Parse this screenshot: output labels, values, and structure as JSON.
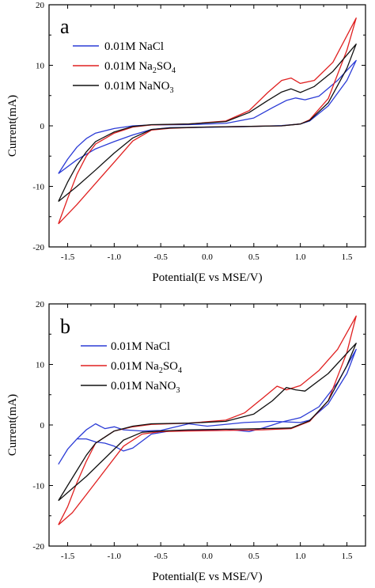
{
  "chart_data": [
    {
      "type": "line",
      "panel_label": "a",
      "xlabel": "Potential(E vs MSE/V)",
      "ylabel": "Current(mA)",
      "xlim": [
        -1.7,
        1.7
      ],
      "ylim": [
        -20,
        20
      ],
      "x_ticks": [
        -1.5,
        -1.0,
        -0.5,
        0.0,
        0.5,
        1.0,
        1.5
      ],
      "x_tick_labels": [
        "-1.5",
        "-1.0",
        "-0.5",
        "0.0",
        "0.5",
        "1.0",
        "1.5"
      ],
      "y_ticks": [
        -20,
        -10,
        0,
        10,
        20
      ],
      "y_tick_labels": [
        "-20",
        "-10",
        "0",
        "10",
        "20"
      ],
      "legend_position": "top-left",
      "series": [
        {
          "name": "0.01M NaCl",
          "legend": {
            "main": "0.01M NaCl",
            "sub": "",
            "tail": ""
          },
          "color": "#2b3bd6",
          "points": [
            [
              -1.6,
              -7.9
            ],
            [
              -1.5,
              -5.5
            ],
            [
              -1.4,
              -3.5
            ],
            [
              -1.3,
              -2.1
            ],
            [
              -1.2,
              -1.2
            ],
            [
              -1.0,
              -0.45
            ],
            [
              -0.8,
              0.0
            ],
            [
              -0.6,
              0.15
            ],
            [
              -0.2,
              0.2
            ],
            [
              0.2,
              0.4
            ],
            [
              0.5,
              1.3
            ],
            [
              0.7,
              3.0
            ],
            [
              0.85,
              4.2
            ],
            [
              0.95,
              4.6
            ],
            [
              1.05,
              4.3
            ],
            [
              1.2,
              4.9
            ],
            [
              1.4,
              7.5
            ],
            [
              1.6,
              10.8
            ],
            [
              1.5,
              7.5
            ],
            [
              1.3,
              3.3
            ],
            [
              1.1,
              0.8
            ],
            [
              1.0,
              0.3
            ],
            [
              0.8,
              0.05
            ],
            [
              0.4,
              -0.15
            ],
            [
              0.0,
              -0.25
            ],
            [
              -0.4,
              -0.3
            ],
            [
              -0.6,
              -0.6
            ],
            [
              -0.8,
              -1.5
            ],
            [
              -1.0,
              -2.6
            ],
            [
              -1.2,
              -3.8
            ],
            [
              -1.4,
              -5.6
            ],
            [
              -1.6,
              -7.9
            ]
          ]
        },
        {
          "name": "0.01M Na2SO4",
          "legend": {
            "main": "0.01M Na",
            "sub": "2",
            "tail": "SO",
            "sub2": "4"
          },
          "color": "#e02020",
          "points": [
            [
              -1.6,
              -16.2
            ],
            [
              -1.5,
              -12.0
            ],
            [
              -1.4,
              -8.0
            ],
            [
              -1.3,
              -5.0
            ],
            [
              -1.2,
              -3.0
            ],
            [
              -1.0,
              -1.2
            ],
            [
              -0.8,
              -0.2
            ],
            [
              -0.6,
              0.15
            ],
            [
              -0.2,
              0.3
            ],
            [
              0.2,
              0.8
            ],
            [
              0.45,
              2.5
            ],
            [
              0.65,
              5.5
            ],
            [
              0.8,
              7.5
            ],
            [
              0.9,
              7.9
            ],
            [
              1.0,
              7.0
            ],
            [
              1.15,
              7.5
            ],
            [
              1.35,
              10.5
            ],
            [
              1.6,
              17.8
            ],
            [
              1.5,
              12.5
            ],
            [
              1.3,
              4.5
            ],
            [
              1.1,
              1.0
            ],
            [
              1.0,
              0.3
            ],
            [
              0.8,
              0.0
            ],
            [
              0.4,
              -0.1
            ],
            [
              0.0,
              -0.2
            ],
            [
              -0.4,
              -0.4
            ],
            [
              -0.6,
              -0.7
            ],
            [
              -0.8,
              -2.5
            ],
            [
              -1.0,
              -6.0
            ],
            [
              -1.2,
              -9.5
            ],
            [
              -1.4,
              -13.0
            ],
            [
              -1.6,
              -16.2
            ]
          ]
        },
        {
          "name": "0.01M NaNO3",
          "legend": {
            "main": "0.01M NaNO",
            "sub": "3",
            "tail": ""
          },
          "color": "#111111",
          "points": [
            [
              -1.6,
              -12.5
            ],
            [
              -1.5,
              -9.3
            ],
            [
              -1.4,
              -6.5
            ],
            [
              -1.3,
              -4.3
            ],
            [
              -1.2,
              -2.6
            ],
            [
              -1.0,
              -1.0
            ],
            [
              -0.8,
              -0.1
            ],
            [
              -0.6,
              0.2
            ],
            [
              -0.2,
              0.3
            ],
            [
              0.2,
              0.7
            ],
            [
              0.45,
              2.2
            ],
            [
              0.65,
              4.2
            ],
            [
              0.8,
              5.6
            ],
            [
              0.9,
              6.1
            ],
            [
              1.0,
              5.5
            ],
            [
              1.15,
              6.5
            ],
            [
              1.35,
              9.0
            ],
            [
              1.6,
              13.5
            ],
            [
              1.5,
              9.5
            ],
            [
              1.3,
              3.8
            ],
            [
              1.1,
              0.9
            ],
            [
              1.0,
              0.3
            ],
            [
              0.8,
              0.0
            ],
            [
              0.4,
              -0.1
            ],
            [
              0.0,
              -0.2
            ],
            [
              -0.4,
              -0.35
            ],
            [
              -0.6,
              -0.6
            ],
            [
              -0.8,
              -2.0
            ],
            [
              -1.0,
              -4.5
            ],
            [
              -1.2,
              -7.3
            ],
            [
              -1.4,
              -10.0
            ],
            [
              -1.6,
              -12.5
            ]
          ]
        }
      ]
    },
    {
      "type": "line",
      "panel_label": "b",
      "xlabel": "Potential(E vs MSE/V)",
      "ylabel": "Current(mA)",
      "xlim": [
        -1.7,
        1.7
      ],
      "ylim": [
        -20,
        20
      ],
      "x_ticks": [
        -1.5,
        -1.0,
        -0.5,
        0.0,
        0.5,
        1.0,
        1.5
      ],
      "x_tick_labels": [
        "-1.5",
        "-1.0",
        "-0.5",
        "0.0",
        "0.5",
        "1.0",
        "1.5"
      ],
      "y_ticks": [
        -20,
        -10,
        0,
        10,
        20
      ],
      "y_tick_labels": [
        "-20",
        "-10",
        "0",
        "10",
        "20"
      ],
      "legend_position": "top-left",
      "series": [
        {
          "name": "0.01M NaCl",
          "legend": {
            "main": "0.01M NaCl",
            "sub": "",
            "tail": ""
          },
          "color": "#2b3bd6",
          "points": [
            [
              -1.6,
              -6.5
            ],
            [
              -1.5,
              -4.0
            ],
            [
              -1.4,
              -2.3
            ],
            [
              -1.3,
              -2.3
            ],
            [
              -1.2,
              -2.8
            ],
            [
              -1.1,
              -3.0
            ],
            [
              -1.0,
              -3.5
            ],
            [
              -0.9,
              -4.3
            ],
            [
              -0.8,
              -3.8
            ],
            [
              -0.6,
              -1.5
            ],
            [
              -0.4,
              -1.0
            ],
            [
              -0.1,
              -0.9
            ],
            [
              0.2,
              -0.7
            ],
            [
              0.45,
              -1.1
            ],
            [
              0.6,
              -0.5
            ],
            [
              0.8,
              0.5
            ],
            [
              1.0,
              1.2
            ],
            [
              1.2,
              3.0
            ],
            [
              1.4,
              7.0
            ],
            [
              1.6,
              12.5
            ],
            [
              1.5,
              8.5
            ],
            [
              1.3,
              3.5
            ],
            [
              1.1,
              0.8
            ],
            [
              1.0,
              0.4
            ],
            [
              0.7,
              0.6
            ],
            [
              0.4,
              0.4
            ],
            [
              0.0,
              -0.2
            ],
            [
              -0.2,
              0.2
            ],
            [
              -0.5,
              -0.9
            ],
            [
              -0.7,
              -1.0
            ],
            [
              -0.9,
              -0.8
            ],
            [
              -1.0,
              -0.3
            ],
            [
              -1.1,
              -0.6
            ],
            [
              -1.2,
              0.2
            ],
            [
              -1.3,
              -0.8
            ],
            [
              -1.4,
              -2.3
            ],
            [
              -1.5,
              -4.0
            ],
            [
              -1.6,
              -6.5
            ]
          ]
        },
        {
          "name": "0.01M Na2SO4",
          "legend": {
            "main": "0.01M Na",
            "sub": "2",
            "tail": "SO",
            "sub2": "4"
          },
          "color": "#e02020",
          "points": [
            [
              -1.6,
              -16.5
            ],
            [
              -1.5,
              -13.5
            ],
            [
              -1.4,
              -9.5
            ],
            [
              -1.3,
              -6.0
            ],
            [
              -1.2,
              -3.0
            ],
            [
              -1.0,
              -1.0
            ],
            [
              -0.8,
              -0.3
            ],
            [
              -0.6,
              0.1
            ],
            [
              -0.2,
              0.3
            ],
            [
              0.2,
              0.8
            ],
            [
              0.4,
              2.0
            ],
            [
              0.6,
              4.5
            ],
            [
              0.75,
              6.4
            ],
            [
              0.85,
              5.8
            ],
            [
              1.0,
              6.5
            ],
            [
              1.2,
              9.0
            ],
            [
              1.4,
              12.5
            ],
            [
              1.6,
              18.0
            ],
            [
              1.5,
              12.0
            ],
            [
              1.3,
              4.0
            ],
            [
              1.1,
              0.6
            ],
            [
              0.9,
              -0.6
            ],
            [
              0.6,
              -0.8
            ],
            [
              0.2,
              -0.9
            ],
            [
              -0.2,
              -1.0
            ],
            [
              -0.5,
              -1.1
            ],
            [
              -0.7,
              -1.5
            ],
            [
              -0.9,
              -3.5
            ],
            [
              -1.1,
              -7.5
            ],
            [
              -1.3,
              -11.5
            ],
            [
              -1.45,
              -14.5
            ],
            [
              -1.6,
              -16.5
            ]
          ]
        },
        {
          "name": "0.01M NaNO3",
          "legend": {
            "main": "0.01M NaNO",
            "sub": "3",
            "tail": ""
          },
          "color": "#111111",
          "points": [
            [
              -1.6,
              -12.5
            ],
            [
              -1.5,
              -10.0
            ],
            [
              -1.4,
              -7.5
            ],
            [
              -1.3,
              -5.0
            ],
            [
              -1.2,
              -3.0
            ],
            [
              -1.0,
              -1.0
            ],
            [
              -0.8,
              -0.2
            ],
            [
              -0.6,
              0.2
            ],
            [
              -0.2,
              0.3
            ],
            [
              0.2,
              0.6
            ],
            [
              0.5,
              1.8
            ],
            [
              0.7,
              4.0
            ],
            [
              0.85,
              6.2
            ],
            [
              0.95,
              5.8
            ],
            [
              1.05,
              5.6
            ],
            [
              1.3,
              8.5
            ],
            [
              1.6,
              13.5
            ],
            [
              1.5,
              9.8
            ],
            [
              1.3,
              4.0
            ],
            [
              1.1,
              0.7
            ],
            [
              0.9,
              -0.5
            ],
            [
              0.6,
              -0.6
            ],
            [
              0.2,
              -0.7
            ],
            [
              -0.2,
              -0.8
            ],
            [
              -0.5,
              -1.0
            ],
            [
              -0.7,
              -1.2
            ],
            [
              -0.9,
              -2.5
            ],
            [
              -1.1,
              -5.5
            ],
            [
              -1.3,
              -8.5
            ],
            [
              -1.45,
              -10.5
            ],
            [
              -1.6,
              -12.5
            ]
          ]
        }
      ]
    }
  ]
}
